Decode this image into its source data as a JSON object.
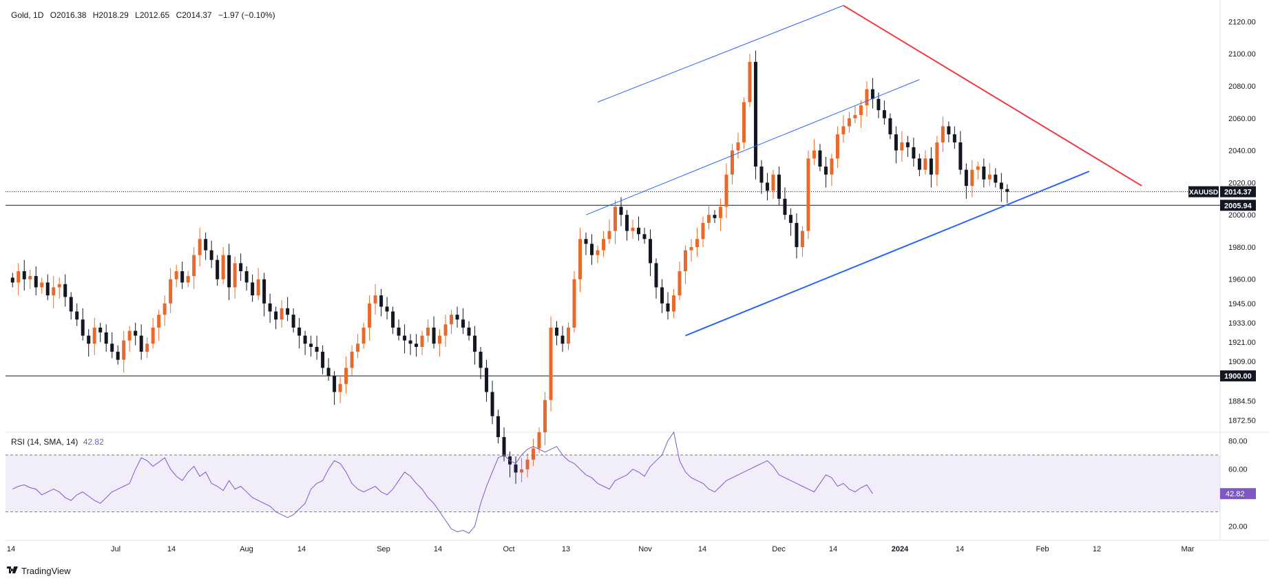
{
  "header": {
    "symbol": "Gold, 1D",
    "open": "O2016.38",
    "high": "H2018.29",
    "low": "L2012.65",
    "close": "C2014.37",
    "change": "−1.97 (−0.10%)"
  },
  "rsi_header": {
    "label": "RSI (14, SMA, 14)",
    "value": "42.82"
  },
  "brand": {
    "name": "TradingView"
  },
  "colors": {
    "up": "#e8692c",
    "down": "#131722",
    "blue_line": "#2962ff",
    "red_line": "#f23645",
    "rsi": "#7e57c2"
  },
  "chart_data": [
    {
      "type": "candlestick",
      "title": "Gold, 1D",
      "x_tick_labels": [
        "14",
        "Jul",
        "14",
        "Aug",
        "14",
        "Sep",
        "14",
        "Oct",
        "13",
        "Nov",
        "14",
        "Dec",
        "14",
        "2024",
        "14",
        "Feb",
        "12",
        "Mar"
      ],
      "y_tick_labels": [
        "2120.00",
        "2100.00",
        "2080.00",
        "2060.00",
        "2040.00",
        "2020.00",
        "2000.00",
        "1980.00",
        "1960.00",
        "1945.00",
        "1933.00",
        "1921.00",
        "1909.00",
        "1900.00",
        "1884.50",
        "1872.50"
      ],
      "ylim": [
        1865,
        2130
      ],
      "price_labels": [
        {
          "name": "XAUUSD",
          "value": "2014.37"
        },
        {
          "name": "",
          "value": "2005.94"
        },
        {
          "name": "",
          "value": "1900.00"
        }
      ],
      "horizontal_levels": [
        2005.94,
        1900.0
      ],
      "last_price": 2014.37,
      "closes": [
        1958,
        1965,
        1960,
        1962,
        1955,
        1958,
        1950,
        1955,
        1957,
        1949,
        1940,
        1935,
        1925,
        1920,
        1930,
        1927,
        1920,
        1915,
        1910,
        1922,
        1928,
        1925,
        1915,
        1920,
        1930,
        1938,
        1945,
        1960,
        1965,
        1958,
        1962,
        1975,
        1985,
        1978,
        1972,
        1960,
        1975,
        1955,
        1970,
        1965,
        1958,
        1950,
        1960,
        1945,
        1940,
        1935,
        1942,
        1938,
        1930,
        1925,
        1920,
        1918,
        1915,
        1905,
        1900,
        1890,
        1895,
        1905,
        1915,
        1920,
        1930,
        1945,
        1950,
        1943,
        1940,
        1930,
        1925,
        1922,
        1920,
        1918,
        1925,
        1930,
        1920,
        1925,
        1932,
        1938,
        1935,
        1930,
        1925,
        1915,
        1905,
        1890,
        1875,
        1862,
        1850,
        1845,
        1840,
        1842,
        1848,
        1855,
        1865,
        1885,
        1930,
        1925,
        1920,
        1930,
        1960,
        1985,
        1982,
        1975,
        1978,
        1985,
        1990,
        2005,
        2000,
        1990,
        1992,
        1988,
        1985,
        1970,
        1955,
        1945,
        1940,
        1950,
        1965,
        1978,
        1980,
        1985,
        1995,
        2000,
        1998,
        2005,
        2025,
        2040,
        2045,
        2070,
        2095,
        2030,
        2020,
        2015,
        2025,
        2010,
        2000,
        1995,
        1980,
        1990,
        2035,
        2040,
        2030,
        2025,
        2035,
        2050,
        2055,
        2060,
        2062,
        2068,
        2078,
        2072,
        2065,
        2060,
        2050,
        2040,
        2045,
        2042,
        2035,
        2028,
        2035,
        2025,
        2045,
        2055,
        2050,
        2045,
        2028,
        2018,
        2028,
        2030,
        2022,
        2025,
        2020,
        2016,
        2014.37
      ],
      "overlays": [
        {
          "name": "lower channel support",
          "color": "#2962ff",
          "from": {
            "index": 115,
            "value": 1925
          },
          "to": {
            "index": 184,
            "value": 2027
          }
        },
        {
          "name": "upper channel",
          "color": "#2962ff",
          "from": {
            "index": 98,
            "value": 2000
          },
          "to": {
            "index": 155,
            "value": 2084
          }
        },
        {
          "name": "outer channel",
          "color": "#2962ff",
          "from": {
            "index": 100,
            "value": 2070
          },
          "to": {
            "index": 142,
            "value": 2130
          }
        },
        {
          "name": "descending resistance",
          "color": "#f23645",
          "from": {
            "index": 142,
            "value": 2130
          },
          "to": {
            "index": 193,
            "value": 2018
          }
        }
      ]
    },
    {
      "type": "line",
      "title": "RSI (14, SMA, 14)",
      "y_tick_labels": [
        "80.00",
        "60.00",
        "20.00"
      ],
      "ylim": [
        10,
        85
      ],
      "band": [
        30,
        70
      ],
      "last_value": 42.82,
      "values": [
        46,
        48,
        49,
        47,
        46,
        42,
        44,
        46,
        44,
        40,
        38,
        42,
        44,
        41,
        38,
        36,
        40,
        44,
        46,
        48,
        50,
        60,
        68,
        66,
        62,
        65,
        68,
        60,
        55,
        52,
        58,
        62,
        55,
        58,
        50,
        48,
        45,
        52,
        46,
        48,
        44,
        40,
        38,
        36,
        34,
        30,
        28,
        26,
        28,
        32,
        36,
        46,
        50,
        52,
        60,
        66,
        64,
        58,
        50,
        46,
        44,
        46,
        48,
        44,
        42,
        46,
        52,
        58,
        55,
        50,
        46,
        40,
        36,
        30,
        24,
        18,
        16,
        17,
        15,
        20,
        36,
        48,
        58,
        68,
        70,
        66,
        64,
        70,
        74,
        76,
        74,
        72,
        74,
        76,
        70,
        66,
        64,
        60,
        56,
        54,
        50,
        48,
        46,
        52,
        54,
        56,
        60,
        58,
        55,
        62,
        66,
        70,
        80,
        86,
        66,
        58,
        54,
        52,
        50,
        46,
        44,
        48,
        52,
        54,
        56,
        58,
        60,
        62,
        64,
        66,
        62,
        56,
        54,
        52,
        50,
        48,
        46,
        44,
        50,
        56,
        54,
        48,
        50,
        46,
        44,
        47,
        49,
        42.82
      ]
    }
  ]
}
